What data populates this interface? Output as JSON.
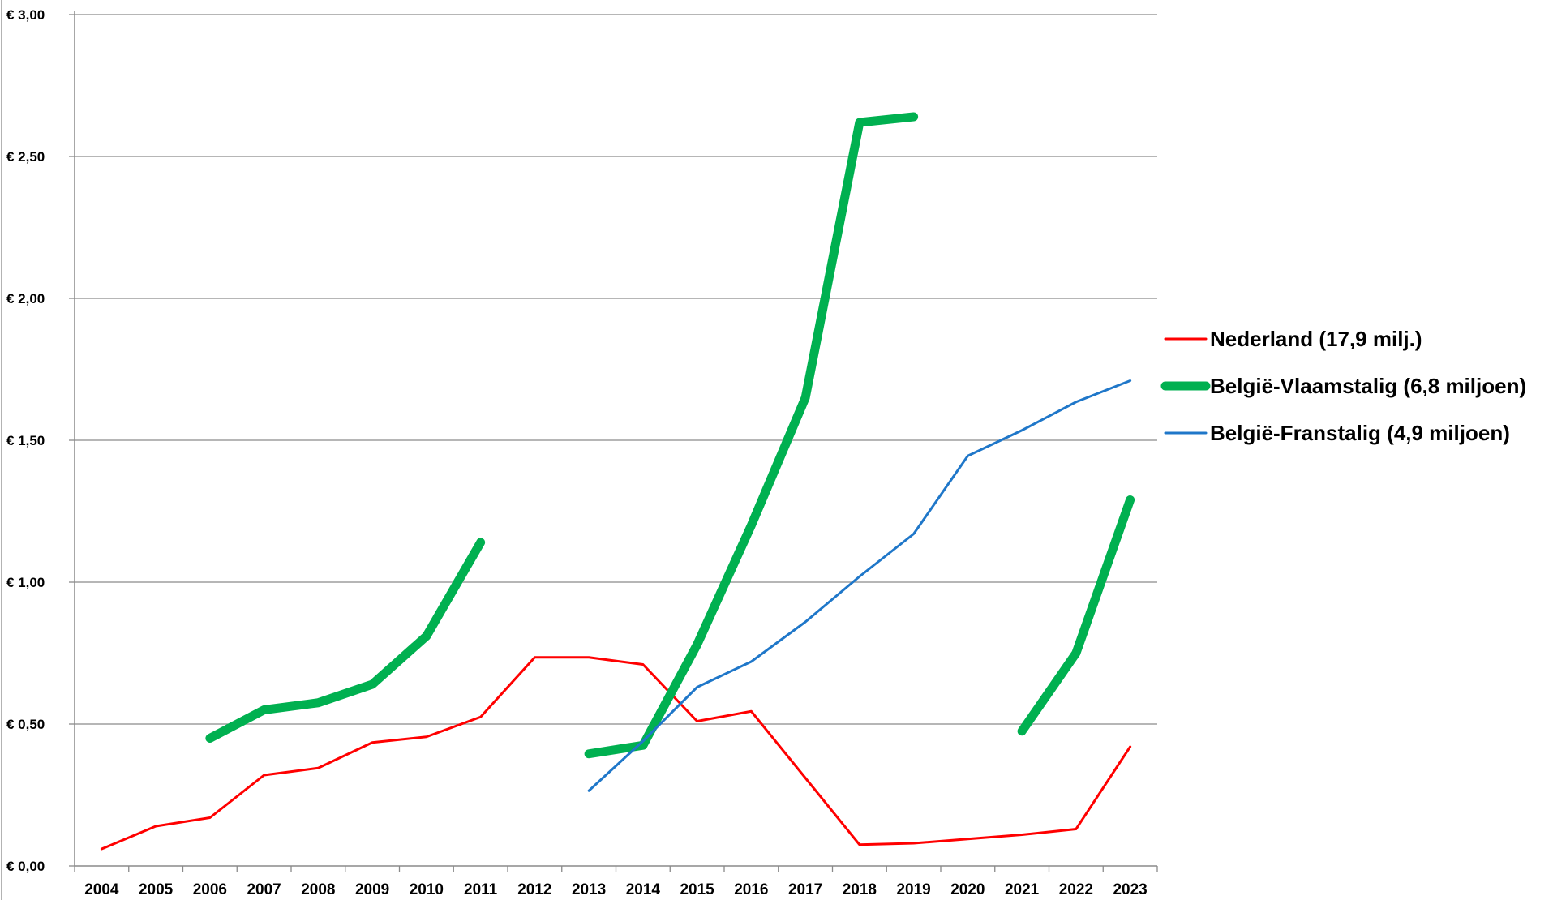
{
  "chart_data": {
    "type": "line",
    "title": "",
    "xlabel": "",
    "ylabel": "",
    "ylim": [
      0,
      3
    ],
    "y_ticks": [
      0,
      0.5,
      1.0,
      1.5,
      2.0,
      2.5,
      3.0
    ],
    "y_tick_labels": [
      "€ 0,00",
      "€ 0,50",
      "€ 1,00",
      "€ 1,50",
      "€ 2,00",
      "€ 2,50",
      "€ 3,00"
    ],
    "grid": true,
    "legend_position": "right",
    "categories": [
      "2004",
      "2005",
      "2006",
      "2007",
      "2008",
      "2009",
      "2010",
      "2011",
      "2012",
      "2013",
      "2014",
      "2015",
      "2016",
      "2017",
      "2018",
      "2019",
      "2020",
      "2021",
      "2022",
      "2023"
    ],
    "series": [
      {
        "name": "Nederland (17,9 milj.)",
        "color": "#ff0000",
        "width": "thin",
        "values": [
          0.06,
          0.14,
          0.17,
          0.32,
          0.345,
          0.435,
          0.455,
          0.525,
          0.735,
          0.735,
          0.71,
          0.51,
          0.545,
          0.31,
          0.075,
          0.08,
          0.095,
          0.11,
          0.13,
          0.42
        ]
      },
      {
        "name": "België-Vlaamstalig (6,8 miljoen)",
        "color": "#00b050",
        "width": "thick",
        "values": [
          null,
          null,
          0.45,
          0.55,
          0.575,
          0.64,
          0.81,
          1.14,
          null,
          0.395,
          0.425,
          0.78,
          1.2,
          1.65,
          2.62,
          2.64,
          null,
          0.475,
          0.75,
          1.29
        ]
      },
      {
        "name": "België-Franstalig (4,9 miljoen)",
        "color": "#1f77c9",
        "width": "thin",
        "values": [
          null,
          null,
          null,
          null,
          null,
          null,
          null,
          null,
          null,
          0.265,
          0.44,
          0.63,
          0.72,
          0.86,
          1.02,
          1.17,
          1.445,
          1.535,
          1.635,
          1.71
        ]
      }
    ]
  }
}
